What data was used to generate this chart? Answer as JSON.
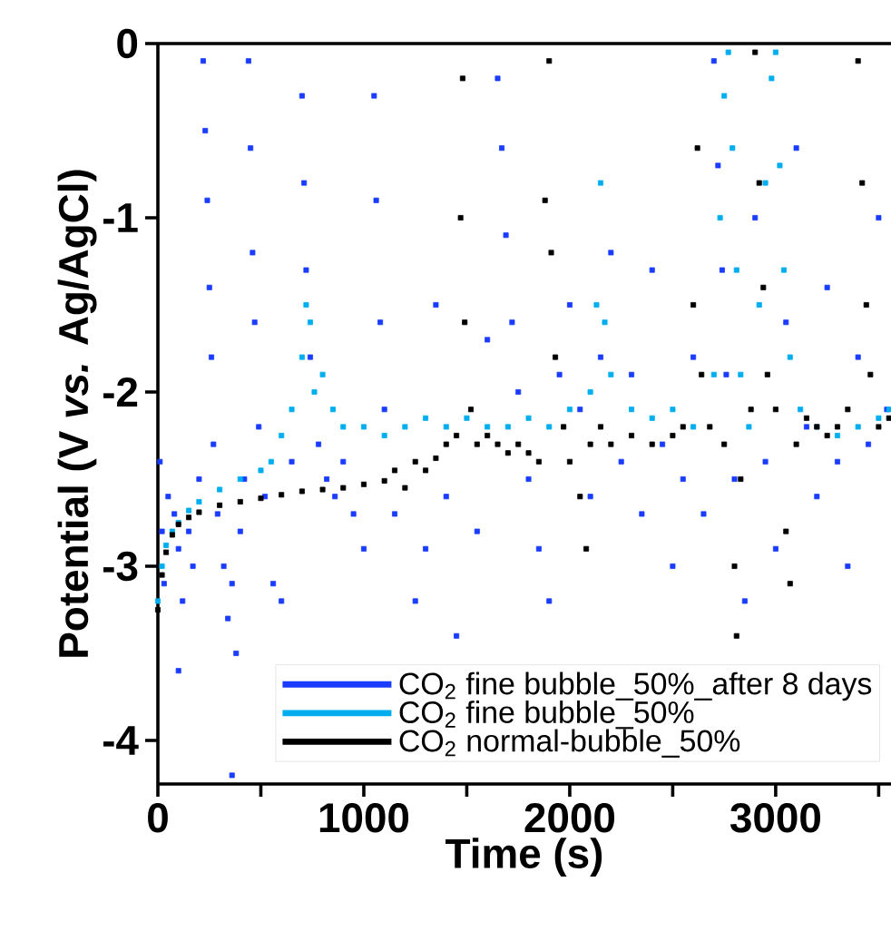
{
  "chart_data": {
    "type": "scatter",
    "xlabel": "Time (s)",
    "ylabel": "Potential (V *vs.* Ag/AgCl)",
    "xlim": [
      0,
      3560
    ],
    "ylim": [
      -4.25,
      0
    ],
    "xticks": [
      0,
      {
        "value": 500,
        "label": null
      },
      1000,
      {
        "value": 1500,
        "label": null
      },
      2000,
      {
        "value": 2500,
        "label": null
      },
      3000,
      {
        "value": 3500,
        "label": null
      }
    ],
    "yticks": [
      -4,
      -3,
      -2,
      -1,
      0
    ],
    "legend": "bottom right",
    "marker": "square",
    "series": [
      {
        "name": "CO$_{2}$ fine bubble_50%_after 8 days",
        "color": "#1a3cff",
        "x": [
          10,
          20,
          30,
          50,
          80,
          100,
          120,
          150,
          170,
          200,
          220,
          230,
          240,
          250,
          260,
          270,
          290,
          320,
          340,
          360,
          380,
          400,
          420,
          440,
          450,
          460,
          470,
          490,
          520,
          560,
          600,
          650,
          700,
          710,
          720,
          740,
          780,
          820,
          860,
          900,
          950,
          1000,
          1050,
          1060,
          1080,
          1100,
          1150,
          1250,
          1300,
          1350,
          1400,
          1450,
          1550,
          1600,
          1650,
          1670,
          1690,
          1720,
          1750,
          1800,
          1850,
          1900,
          1950,
          2000,
          2050,
          2100,
          2150,
          2200,
          2250,
          2300,
          2350,
          2400,
          2450,
          2500,
          2550,
          2600,
          2650,
          2700,
          2720,
          2740,
          2760,
          2800,
          2850,
          2900,
          2950,
          3000,
          3050,
          3100,
          3150,
          3200,
          3250,
          3300,
          3350,
          3400,
          3450,
          3500,
          3540,
          360,
          100
        ],
        "values": [
          -2.4,
          -2.8,
          -3.1,
          -2.6,
          -2.7,
          -2.9,
          -3.2,
          -2.8,
          -3.0,
          -2.5,
          -0.1,
          -0.5,
          -0.9,
          -1.4,
          -1.8,
          -2.3,
          -2.7,
          -3.0,
          -3.3,
          -3.1,
          -3.5,
          -2.8,
          -2.5,
          -0.1,
          -0.6,
          -1.2,
          -1.6,
          -2.2,
          -2.6,
          -3.1,
          -3.2,
          -2.4,
          -0.3,
          -0.8,
          -1.3,
          -1.8,
          -2.3,
          -2.5,
          -2.6,
          -2.4,
          -2.7,
          -2.9,
          -0.3,
          -0.9,
          -1.6,
          -2.1,
          -2.7,
          -3.2,
          -2.9,
          -1.5,
          -2.6,
          -3.4,
          -2.8,
          -1.7,
          -0.2,
          -0.6,
          -1.1,
          -1.6,
          -2.0,
          -2.5,
          -2.9,
          -3.2,
          -1.9,
          -1.5,
          -2.1,
          -2.6,
          -1.8,
          -1.2,
          -2.4,
          -1.9,
          -2.7,
          -1.3,
          -2.3,
          -3.0,
          -2.5,
          -1.8,
          -2.7,
          -0.1,
          -0.7,
          -1.3,
          -1.9,
          -2.5,
          -3.2,
          -1.0,
          -2.4,
          -2.9,
          -1.6,
          -0.6,
          -2.2,
          -2.6,
          -1.4,
          -2.4,
          -3.0,
          -1.8,
          -2.3,
          -1.0,
          -2.1,
          -4.2,
          -3.6
        ]
      },
      {
        "name": "CO$_{2}$ fine bubble_50%",
        "color": "#00aeef",
        "x": [
          0,
          20,
          40,
          70,
          100,
          150,
          200,
          300,
          400,
          500,
          550,
          600,
          650,
          700,
          720,
          740,
          760,
          800,
          850,
          900,
          1000,
          1100,
          1200,
          1300,
          1400,
          1500,
          1600,
          1700,
          1800,
          1900,
          2000,
          2100,
          2130,
          2150,
          2170,
          2200,
          2300,
          2400,
          2500,
          2600,
          2700,
          2730,
          2750,
          2770,
          2790,
          2810,
          2830,
          2870,
          2920,
          2950,
          2980,
          3000,
          3020,
          3040,
          3070,
          3120,
          3200,
          3300,
          3400,
          3500,
          3550
        ],
        "values": [
          -3.2,
          -3.0,
          -2.88,
          -2.8,
          -2.75,
          -2.68,
          -2.63,
          -2.56,
          -2.5,
          -2.45,
          -2.4,
          -2.25,
          -2.1,
          -1.8,
          -1.5,
          -1.6,
          -2.0,
          -1.9,
          -2.1,
          -2.2,
          -2.2,
          -2.25,
          -2.2,
          -2.15,
          -2.2,
          -2.15,
          -2.2,
          -2.2,
          -2.15,
          -2.2,
          -2.1,
          -2.0,
          -1.5,
          -0.8,
          -1.6,
          -1.9,
          -2.1,
          -2.15,
          -2.1,
          -2.2,
          -1.9,
          -1.0,
          -0.3,
          -0.05,
          -0.6,
          -1.3,
          -1.9,
          -2.2,
          -1.5,
          -0.8,
          -0.2,
          -0.05,
          -0.7,
          -1.3,
          -1.8,
          -2.1,
          -2.2,
          -2.25,
          -2.2,
          -2.15,
          -2.1
        ]
      },
      {
        "name": "CO$_{2}$ normal-bubble_50%",
        "color": "#000000",
        "x": [
          0,
          20,
          40,
          70,
          100,
          150,
          200,
          300,
          400,
          500,
          600,
          700,
          800,
          900,
          1000,
          1100,
          1150,
          1200,
          1250,
          1300,
          1350,
          1400,
          1450,
          1470,
          1480,
          1490,
          1520,
          1550,
          1600,
          1650,
          1700,
          1750,
          1800,
          1850,
          1880,
          1900,
          1910,
          1930,
          1970,
          2000,
          2050,
          2080,
          2100,
          2150,
          2200,
          2300,
          2400,
          2500,
          2550,
          2600,
          2620,
          2640,
          2680,
          2750,
          2800,
          2810,
          2830,
          2880,
          2900,
          2920,
          2940,
          2960,
          3000,
          3050,
          3070,
          3100,
          3150,
          3200,
          3250,
          3300,
          3350,
          3400,
          3420,
          3440,
          3460,
          3500,
          3550
        ],
        "values": [
          -3.25,
          -3.05,
          -2.92,
          -2.82,
          -2.76,
          -2.72,
          -2.69,
          -2.65,
          -2.63,
          -2.61,
          -2.59,
          -2.57,
          -2.56,
          -2.55,
          -2.53,
          -2.51,
          -2.45,
          -2.55,
          -2.4,
          -2.45,
          -2.38,
          -2.3,
          -2.25,
          -1.0,
          -0.2,
          -1.6,
          -2.1,
          -2.3,
          -2.25,
          -2.3,
          -2.35,
          -2.3,
          -2.35,
          -2.4,
          -0.9,
          -0.1,
          -1.2,
          -1.8,
          -2.2,
          -2.4,
          -2.6,
          -2.9,
          -2.3,
          -2.2,
          -2.3,
          -2.25,
          -2.3,
          -2.25,
          -2.2,
          -1.5,
          -0.6,
          -1.9,
          -2.2,
          -2.3,
          -3.0,
          -3.4,
          -2.5,
          -2.1,
          -0.05,
          -0.8,
          -1.4,
          -1.9,
          -2.1,
          -2.8,
          -3.1,
          -2.3,
          -2.15,
          -2.2,
          -2.25,
          -2.2,
          -2.1,
          -0.1,
          -0.8,
          -1.5,
          -1.9,
          -2.2,
          -2.15
        ]
      }
    ]
  }
}
